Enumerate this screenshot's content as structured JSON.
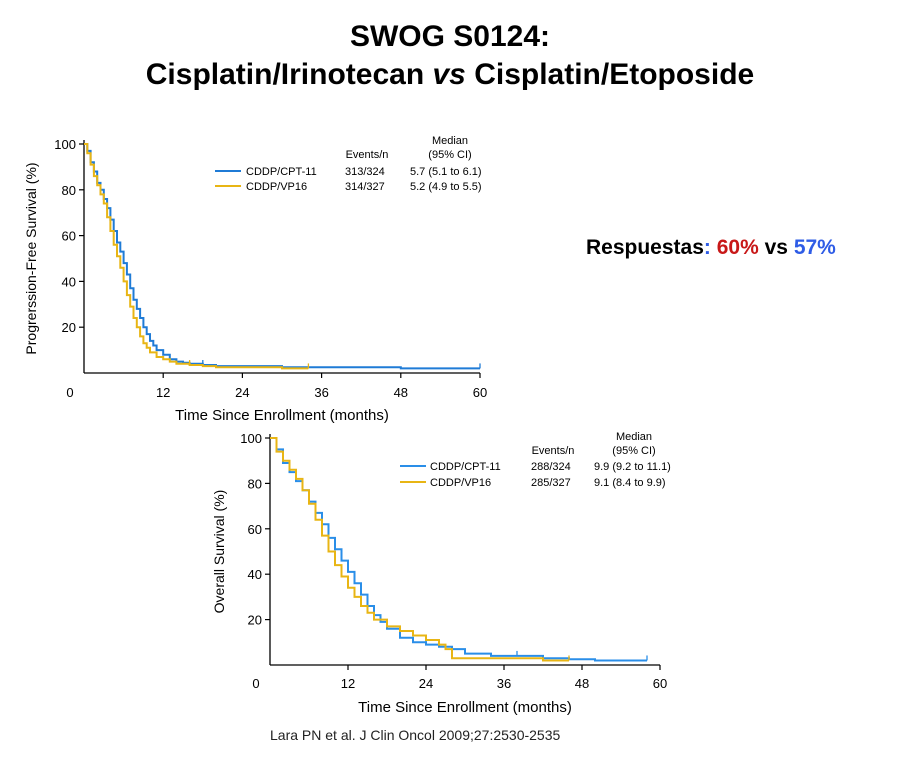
{
  "title_line1": "SWOG S0124:",
  "title_line2_a": "Cisplatin/Irinotecan ",
  "title_line2_vs": "vs",
  "title_line2_b": " Cisplatin/Etoposide",
  "responses": {
    "label": "Respuestas",
    "colon": ":",
    "value_a": "60%",
    "vs": "vs",
    "value_b": "57%",
    "color_a": "#c81818",
    "color_b": "#2e5ce6"
  },
  "citation": "Lara PN et al. J Clin Oncol 2009;27:2530-2535",
  "chart_data": [
    {
      "type": "line",
      "ylabel": "Progrerssion-Free Survival (%)",
      "xlabel": "Time Since Enrollment (months)",
      "xlim": [
        0,
        60
      ],
      "ylim": [
        0,
        100
      ],
      "xticks": [
        "0",
        "12",
        "24",
        "36",
        "48",
        "60"
      ],
      "yticks": [
        "20",
        "40",
        "60",
        "80",
        "100"
      ],
      "table_header": {
        "events": "Events/n",
        "median_l1": "Median",
        "median_l2": "(95% CI)"
      },
      "series": [
        {
          "name": "CDDP/CPT-11",
          "events": "313/324",
          "median": "5.7 (5.1 to 6.1)",
          "color": "#1f7bd6",
          "x": [
            0,
            0.5,
            1,
            1.5,
            2,
            2.5,
            3,
            3.5,
            4,
            4.5,
            5,
            5.5,
            6,
            6.5,
            7,
            7.5,
            8,
            8.5,
            9,
            9.5,
            10,
            10.5,
            11,
            12,
            13,
            14,
            15,
            16,
            18,
            20,
            24,
            30,
            36,
            48,
            60
          ],
          "y": [
            100,
            97,
            92,
            88,
            83,
            80,
            76,
            72,
            67,
            62,
            57,
            53,
            48,
            43,
            37,
            32,
            28,
            24,
            20,
            17,
            14,
            12,
            10,
            8,
            6,
            5,
            4.5,
            4,
            3.5,
            3,
            3,
            2.5,
            2.5,
            2,
            2
          ]
        },
        {
          "name": "CDDP/VP16",
          "events": "314/327",
          "median": "5.2 (4.9 to 5.5)",
          "color": "#e8b514",
          "x": [
            0,
            0.5,
            1,
            1.5,
            2,
            2.5,
            3,
            3.5,
            4,
            4.5,
            5,
            5.5,
            6,
            6.5,
            7,
            7.5,
            8,
            8.5,
            9,
            9.5,
            10,
            11,
            12,
            13,
            14,
            16,
            18,
            20,
            24,
            30,
            34
          ],
          "y": [
            100,
            96,
            91,
            86,
            82,
            78,
            74,
            68,
            62,
            56,
            51,
            46,
            40,
            34,
            29,
            24,
            20,
            16,
            13,
            11,
            9,
            7,
            6,
            5,
            4,
            3.5,
            3,
            2.5,
            2.5,
            2,
            2
          ]
        }
      ]
    },
    {
      "type": "line",
      "ylabel": "Overall Survival (%)",
      "xlabel": "Time Since Enrollment (months)",
      "xlim": [
        0,
        60
      ],
      "ylim": [
        0,
        100
      ],
      "xticks": [
        "0",
        "12",
        "24",
        "36",
        "48",
        "60"
      ],
      "yticks": [
        "20",
        "40",
        "60",
        "80",
        "100"
      ],
      "table_header": {
        "events": "Events/n",
        "median_l1": "Median",
        "median_l2": "(95% CI)"
      },
      "series": [
        {
          "name": "CDDP/CPT-11",
          "events": "288/324",
          "median": "9.9 (9.2 to 11.1)",
          "color": "#2a8ee8",
          "x": [
            0,
            1,
            2,
            3,
            4,
            5,
            6,
            7,
            8,
            9,
            10,
            11,
            12,
            13,
            14,
            15,
            16,
            17,
            18,
            20,
            22,
            24,
            26,
            28,
            30,
            34,
            38,
            42,
            46,
            50,
            54,
            58
          ],
          "y": [
            100,
            95,
            89,
            85,
            81,
            77,
            72,
            67,
            62,
            56,
            51,
            46,
            41,
            36,
            31,
            26,
            22,
            19,
            16,
            12,
            10,
            9,
            8,
            7,
            5,
            4,
            4,
            3,
            2.5,
            2,
            2,
            2
          ]
        },
        {
          "name": "CDDP/VP16",
          "events": "285/327",
          "median": "9.1 (8.4 to 9.9)",
          "color": "#e8b514",
          "x": [
            0,
            1,
            2,
            3,
            4,
            5,
            6,
            7,
            8,
            9,
            10,
            11,
            12,
            13,
            14,
            15,
            16,
            18,
            20,
            22,
            24,
            26,
            27,
            28,
            30,
            34,
            38,
            42,
            46
          ],
          "y": [
            100,
            94,
            90,
            86,
            82,
            77,
            71,
            64,
            57,
            50,
            44,
            39,
            34,
            30,
            26,
            23,
            20,
            17,
            15,
            13,
            11,
            9,
            7,
            3,
            3,
            3,
            3,
            2,
            2
          ]
        }
      ]
    }
  ]
}
